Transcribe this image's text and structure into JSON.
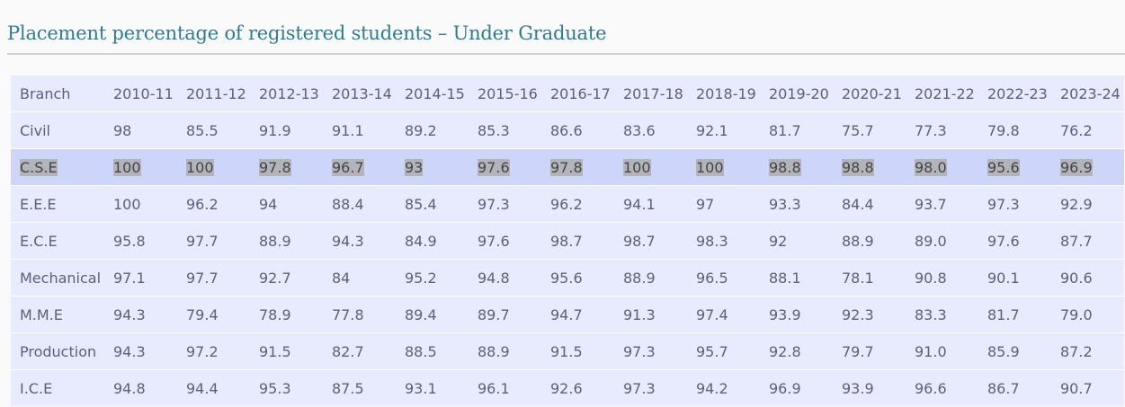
{
  "title": "Placement percentage of registered students – Under Graduate",
  "table": {
    "header": [
      "Branch",
      "2010-11",
      "2011-12",
      "2012-13",
      "2013-14",
      "2014-15",
      "2015-16",
      "2016-17",
      "2017-18",
      "2018-19",
      "2019-20",
      "2020-21",
      "2021-22",
      "2022-23",
      "2023-24"
    ],
    "rows": [
      [
        "Civil",
        "98",
        "85.5",
        "91.9",
        "91.1",
        "89.2",
        "85.3",
        "86.6",
        "83.6",
        "92.1",
        "81.7",
        "75.7",
        "77.3",
        "79.8",
        "76.2"
      ],
      [
        "C.S.E",
        "100",
        "100",
        "97.8",
        "96.7",
        "93",
        "97.6",
        "97.8",
        "100",
        "100",
        "98.8",
        "98.8",
        "98.0",
        "95.6",
        "96.9"
      ],
      [
        "E.E.E",
        "100",
        "96.2",
        "94",
        "88.4",
        "85.4",
        "97.3",
        "96.2",
        "94.1",
        "97",
        "93.3",
        "84.4",
        "93.7",
        "97.3",
        "92.9"
      ],
      [
        "E.C.E",
        "95.8",
        "97.7",
        "88.9",
        "94.3",
        "84.9",
        "97.6",
        "98.7",
        "98.7",
        "98.3",
        "92",
        "88.9",
        "89.0",
        "97.6",
        "87.7"
      ],
      [
        "Mechanical",
        "97.1",
        "97.7",
        "92.7",
        "84",
        "95.2",
        "94.8",
        "95.6",
        "88.9",
        "96.5",
        "88.1",
        "78.1",
        "90.8",
        "90.1",
        "90.6"
      ],
      [
        "M.M.E",
        "94.3",
        "79.4",
        "78.9",
        "77.8",
        "89.4",
        "89.7",
        "94.7",
        "91.3",
        "97.4",
        "93.9",
        "92.3",
        "83.3",
        "81.7",
        "79.0"
      ],
      [
        "Production",
        "94.3",
        "97.2",
        "91.5",
        "82.7",
        "88.5",
        "88.9",
        "91.5",
        "97.3",
        "95.7",
        "92.8",
        "79.7",
        "91.0",
        "85.9",
        "87.2"
      ],
      [
        "I.C.E",
        "94.8",
        "94.4",
        "95.3",
        "87.5",
        "93.1",
        "96.1",
        "92.6",
        "97.3",
        "94.2",
        "96.9",
        "93.9",
        "96.6",
        "86.7",
        "90.7"
      ]
    ],
    "highlighted_row": 1
  }
}
